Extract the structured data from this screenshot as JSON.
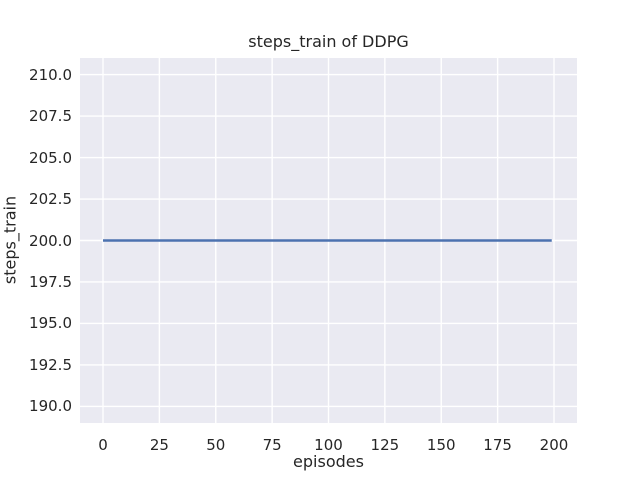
{
  "chart_data": {
    "type": "line",
    "title": "steps_train of DDPG",
    "xlabel": "episodes",
    "ylabel": "steps_train",
    "series": [
      {
        "name": "steps_train",
        "color": "#4c72b0",
        "x": [
          0,
          199
        ],
        "y": [
          200,
          200
        ],
        "note": "constant value of 200 training steps per episode across all episodes"
      }
    ],
    "xlim": [
      -10.2,
      210.2
    ],
    "ylim": [
      189.0,
      211.0
    ],
    "x_ticks": [
      0,
      25,
      50,
      75,
      100,
      125,
      150,
      175,
      200
    ],
    "x_tick_labels": [
      "0",
      "25",
      "50",
      "75",
      "100",
      "125",
      "150",
      "175",
      "200"
    ],
    "y_ticks": [
      190,
      192.5,
      195,
      197.5,
      200,
      202.5,
      205,
      207.5,
      210
    ],
    "y_tick_labels": [
      "190.0",
      "192.5",
      "195.0",
      "197.5",
      "200.0",
      "202.5",
      "205.0",
      "207.5",
      "210.0"
    ],
    "grid": true,
    "legend": "none",
    "style": {
      "figure_background": "#ffffff",
      "axes_background": "#eaeaf2",
      "grid_color": "#ffffff",
      "text_color": "#262626",
      "line_width": 2.4,
      "grid_line_width": 1.4
    }
  }
}
